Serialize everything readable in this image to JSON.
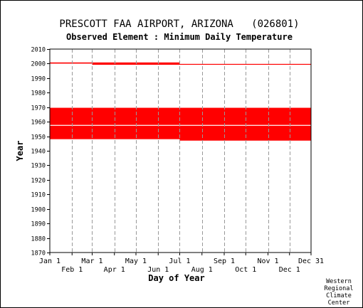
{
  "chart_data": {
    "type": "heatmap",
    "title": "PRESCOTT FAA AIRPORT, ARIZONA   (026801)",
    "subtitle": "Observed Element : Minimum Daily Temperature",
    "xlabel": "Day of Year",
    "ylabel": "Year",
    "credit": [
      "Western",
      "Regional",
      "Climate",
      "Center"
    ],
    "xlim": [
      1,
      365
    ],
    "ylim": [
      1870,
      2010
    ],
    "y_ticks": [
      1870,
      1880,
      1890,
      1900,
      1910,
      1920,
      1930,
      1940,
      1950,
      1960,
      1970,
      1980,
      1990,
      2000,
      2010
    ],
    "x_ticks_upper": [
      {
        "label": "Jan 1",
        "day": 1
      },
      {
        "label": "Mar 1",
        "day": 60
      },
      {
        "label": "May 1",
        "day": 121
      },
      {
        "label": "Jul 1",
        "day": 182
      },
      {
        "label": "Sep 1",
        "day": 244
      },
      {
        "label": "Nov 1",
        "day": 305
      },
      {
        "label": "Dec 31",
        "day": 365
      }
    ],
    "x_ticks_lower": [
      {
        "label": "Feb 1",
        "day": 32
      },
      {
        "label": "Apr 1",
        "day": 91
      },
      {
        "label": "Jun 1",
        "day": 152
      },
      {
        "label": "Aug 1",
        "day": 213
      },
      {
        "label": "Oct 1",
        "day": 274
      },
      {
        "label": "Dec 1",
        "day": 335
      }
    ],
    "grid": true,
    "data_color": "#ff0000",
    "records": [
      {
        "day_start": 1,
        "day_end": 60,
        "year_start": 2000,
        "year_end": 2000.8
      },
      {
        "day_start": 60,
        "day_end": 182,
        "year_start": 1999.2,
        "year_end": 2000.8
      },
      {
        "day_start": 182,
        "day_end": 365,
        "year_start": 1999.2,
        "year_end": 1999.8
      },
      {
        "day_start": 1,
        "day_end": 182,
        "year_start": 1948,
        "year_end": 1969.6
      },
      {
        "day_start": 182,
        "day_end": 365,
        "year_start": 1947,
        "year_end": 1969.6
      }
    ],
    "gaps": [
      {
        "day_start": 1,
        "day_end": 365,
        "year_start": 1957.2,
        "year_end": 1957.8
      }
    ]
  }
}
